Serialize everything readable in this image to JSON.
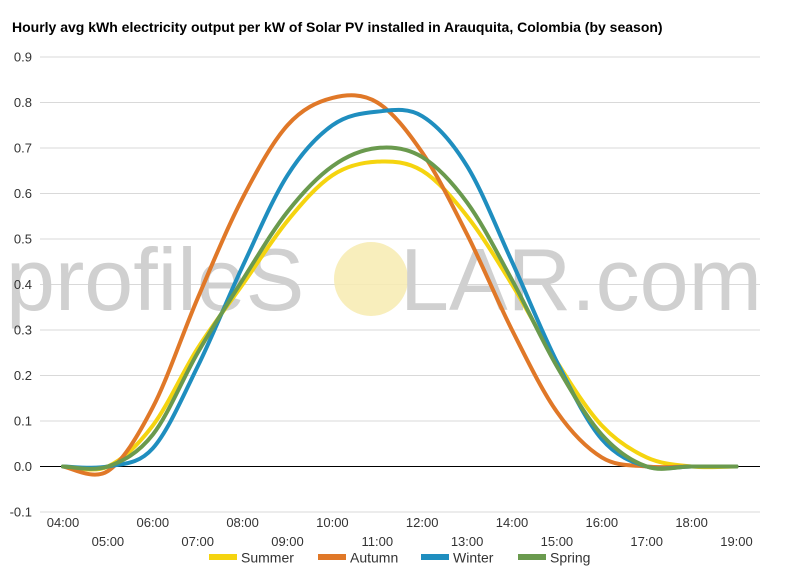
{
  "chart_data": {
    "type": "line",
    "title": "Hourly avg kWh electricity output per kW of Solar PV installed in Arauquita, Colombia (by season)",
    "watermark": {
      "part1": "profileS",
      "part2": "LAR.com"
    },
    "xlabel": "",
    "ylabel": "",
    "x": [
      "04:00",
      "05:00",
      "06:00",
      "07:00",
      "08:00",
      "09:00",
      "10:00",
      "11:00",
      "12:00",
      "13:00",
      "14:00",
      "15:00",
      "16:00",
      "17:00",
      "18:00",
      "19:00"
    ],
    "ylim": [
      -0.1,
      0.9
    ],
    "yticks": [
      "-0.1",
      "0.0",
      "0.1",
      "0.2",
      "0.3",
      "0.4",
      "0.5",
      "0.6",
      "0.7",
      "0.8",
      "0.9"
    ],
    "grid": true,
    "legend_position": "bottom",
    "series": [
      {
        "name": "Summer",
        "color": "#f5d40f",
        "values": [
          0.0,
          0.0,
          0.09,
          0.26,
          0.4,
          0.54,
          0.64,
          0.67,
          0.65,
          0.55,
          0.4,
          0.23,
          0.09,
          0.02,
          0.0,
          0.0
        ]
      },
      {
        "name": "Autumn",
        "color": "#e07828",
        "values": [
          0.0,
          -0.01,
          0.13,
          0.37,
          0.59,
          0.75,
          0.81,
          0.8,
          0.69,
          0.51,
          0.3,
          0.12,
          0.02,
          0.0,
          0.0,
          0.0
        ]
      },
      {
        "name": "Winter",
        "color": "#1f8ebf",
        "values": [
          0.0,
          0.0,
          0.04,
          0.22,
          0.44,
          0.64,
          0.75,
          0.78,
          0.77,
          0.66,
          0.45,
          0.23,
          0.06,
          0.0,
          0.0,
          0.0
        ]
      },
      {
        "name": "Spring",
        "color": "#6a9a4e",
        "values": [
          0.0,
          0.0,
          0.07,
          0.25,
          0.41,
          0.56,
          0.66,
          0.7,
          0.68,
          0.58,
          0.41,
          0.22,
          0.07,
          0.0,
          0.0,
          0.0
        ]
      }
    ]
  }
}
